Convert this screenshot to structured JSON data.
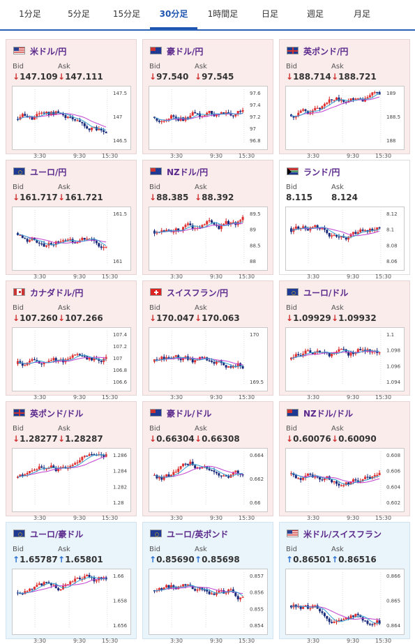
{
  "tabs": [
    {
      "label": "1分足"
    },
    {
      "label": "5分足"
    },
    {
      "label": "15分足"
    },
    {
      "label": "30分足"
    },
    {
      "label": "1時間足"
    },
    {
      "label": "日足"
    },
    {
      "label": "週足"
    },
    {
      "label": "月足"
    }
  ],
  "active_tab": "30分足",
  "labels": {
    "bid": "Bid",
    "ask": "Ask"
  },
  "x_ticks": [
    "3:30",
    "9:30",
    "15:30"
  ],
  "colors": {
    "up_arrow": "#2a6fd0",
    "down_arrow": "#d03030",
    "pair_text": "#5b2a8c",
    "active_tab": "#1f55b0"
  },
  "cards": [
    {
      "pair": "米ドル/円",
      "flag": "us-flag",
      "trend": "down",
      "bid": "147.109",
      "ask": "147.111",
      "style": "pink",
      "y_ticks": [
        "147.5",
        "147",
        "146.5"
      ]
    },
    {
      "pair": "豪ドル/円",
      "flag": "au-flag",
      "trend": "down",
      "bid": "97.540",
      "ask": "97.545",
      "style": "pink",
      "y_ticks": [
        "97.6",
        "97.4",
        "97.2",
        "97",
        "96.8"
      ]
    },
    {
      "pair": "英ポンド/円",
      "flag": "gb-flag",
      "trend": "down",
      "bid": "188.714",
      "ask": "188.721",
      "style": "pink",
      "y_ticks": [
        "189",
        "188.5",
        "188"
      ]
    },
    {
      "pair": "ユーロ/円",
      "flag": "eu-flag",
      "trend": "down",
      "bid": "161.717",
      "ask": "161.721",
      "style": "pink",
      "y_ticks": [
        "161.5",
        "161"
      ]
    },
    {
      "pair": "NZドル/円",
      "flag": "nz-flag",
      "trend": "down",
      "bid": "88.385",
      "ask": "88.392",
      "style": "pink",
      "y_ticks": [
        "89.5",
        "89",
        "88.5",
        "88"
      ]
    },
    {
      "pair": "ランド/円",
      "flag": "za-flag",
      "trend": "none",
      "bid": "8.115",
      "ask": "8.124",
      "style": "neutral",
      "y_ticks": [
        "8.12",
        "8.1",
        "8.08",
        "8.06"
      ]
    },
    {
      "pair": "カナダドル/円",
      "flag": "ca-flag",
      "trend": "down",
      "bid": "107.260",
      "ask": "107.266",
      "style": "pink",
      "y_ticks": [
        "107.4",
        "107.2",
        "107",
        "106.8",
        "106.6"
      ]
    },
    {
      "pair": "スイスフラン/円",
      "flag": "ch-flag",
      "trend": "down",
      "bid": "170.047",
      "ask": "170.063",
      "style": "pink",
      "y_ticks": [
        "170",
        "169.5"
      ]
    },
    {
      "pair": "ユーロ/ドル",
      "flag": "eu-us-flag",
      "trend": "down",
      "bid": "1.09929",
      "ask": "1.09932",
      "style": "pink",
      "y_ticks": [
        "1.1",
        "1.098",
        "1.096",
        "1.094"
      ]
    },
    {
      "pair": "英ポンド/ドル",
      "flag": "gb-us-flag",
      "trend": "down",
      "bid": "1.28277",
      "ask": "1.28287",
      "style": "pink",
      "y_ticks": [
        "1.286",
        "1.284",
        "1.282",
        "1.28"
      ]
    },
    {
      "pair": "豪ドル/ドル",
      "flag": "au-us-flag",
      "trend": "down",
      "bid": "0.66304",
      "ask": "0.66308",
      "style": "pink",
      "y_ticks": [
        "0.664",
        "0.662",
        "0.66"
      ]
    },
    {
      "pair": "NZドル/ドル",
      "flag": "nz-us-flag",
      "trend": "down",
      "bid": "0.60076",
      "ask": "0.60090",
      "style": "pink",
      "y_ticks": [
        "0.608",
        "0.606",
        "0.604",
        "0.602"
      ]
    },
    {
      "pair": "ユーロ/豪ドル",
      "flag": "eu-au-flag",
      "trend": "up",
      "bid": "1.65787",
      "ask": "1.65801",
      "style": "blue",
      "y_ticks": [
        "1.66",
        "1.658",
        "1.656"
      ]
    },
    {
      "pair": "ユーロ/英ポンド",
      "flag": "eu-gb-flag",
      "trend": "up",
      "bid": "0.85690",
      "ask": "0.85698",
      "style": "blue",
      "y_ticks": [
        "0.857",
        "0.856",
        "0.855",
        "0.854"
      ]
    },
    {
      "pair": "米ドル/スイスフラン",
      "flag": "us-ch-flag",
      "trend": "up",
      "bid": "0.86501",
      "ask": "0.86516",
      "style": "blue",
      "y_ticks": [
        "0.866",
        "0.865",
        "0.864"
      ]
    }
  ]
}
